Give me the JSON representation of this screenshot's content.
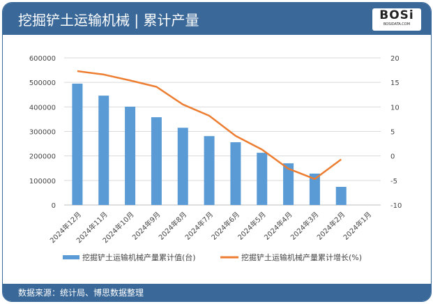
{
  "header": {
    "title": "挖掘铲土运输机械 | 累计产量",
    "logo_text": "BOSi",
    "logo_sub": "BOSIDATA.COM"
  },
  "footer": {
    "source": "数据来源：统计局、博思数据整理"
  },
  "colors": {
    "bar": "#5b9bd5",
    "line": "#ed7d31",
    "header": "#3a6898"
  },
  "chart_data": {
    "type": "bar+line",
    "categories": [
      "2024年12月",
      "2024年11月",
      "2024年10月",
      "2024年9月",
      "2024年8月",
      "2024年7月",
      "2024年6月",
      "2024年5月",
      "2024年4月",
      "2024年3月",
      "2024年2月",
      "2024年1月"
    ],
    "series": [
      {
        "name": "挖掘铲土运输机械产量累计值(台)",
        "type": "bar",
        "axis": "left",
        "values": [
          495000,
          446000,
          401000,
          358000,
          315000,
          281000,
          256000,
          213000,
          170000,
          128000,
          74000,
          null
        ]
      },
      {
        "name": "挖掘铲土运输机械产量累计增长(%)",
        "type": "line",
        "axis": "right",
        "values": [
          17.3,
          16.6,
          15.4,
          14.1,
          10.5,
          8.2,
          4.1,
          1.3,
          -2.6,
          -4.7,
          -0.7,
          null
        ]
      }
    ],
    "y_left": {
      "range": [
        0,
        600000
      ],
      "ticks": [
        "0",
        "100000",
        "200000",
        "300000",
        "400000",
        "500000",
        "600000"
      ]
    },
    "y_right": {
      "range": [
        -10,
        20
      ],
      "ticks": [
        "-10",
        "-5",
        "0",
        "5",
        "10",
        "15",
        "20"
      ]
    },
    "grid": true,
    "legend": "bottom"
  }
}
